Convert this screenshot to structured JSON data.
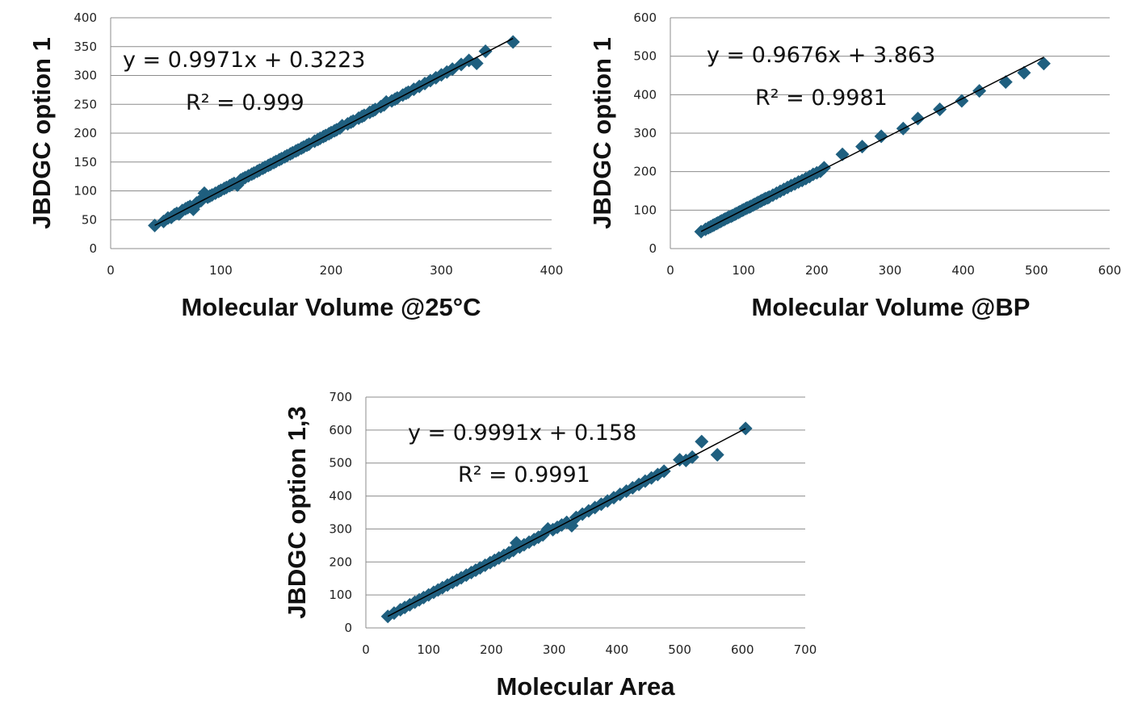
{
  "marker_color": "#1f5f7f",
  "chart_data": [
    {
      "type": "scatter",
      "xlabel": "Molecular Volume @25°C",
      "ylabel": "JBDGC option 1",
      "xlim": [
        0,
        400
      ],
      "ylim": [
        0,
        400
      ],
      "xticks": [
        0,
        100,
        200,
        300,
        400
      ],
      "yticks": [
        0,
        50,
        100,
        150,
        200,
        250,
        300,
        350,
        400
      ],
      "grid": "horizontal",
      "equation": "y = 0.9971x + 0.3223",
      "r2": "R² = 0.999",
      "trend": {
        "slope": 0.9971,
        "intercept": 0.3223
      },
      "series": [
        {
          "x": [
            40,
            48,
            52,
            55,
            58,
            60,
            62,
            65,
            68,
            70,
            72,
            75,
            78,
            80,
            82,
            85,
            88,
            90,
            92,
            95,
            98,
            100,
            103,
            105,
            108,
            110,
            112,
            115,
            118,
            120,
            122,
            125,
            128,
            130,
            133,
            135,
            138,
            140,
            143,
            145,
            148,
            150,
            153,
            155,
            158,
            160,
            163,
            165,
            168,
            170,
            173,
            175,
            178,
            180,
            185,
            188,
            190,
            193,
            195,
            198,
            200,
            203,
            205,
            208,
            210,
            215,
            218,
            220,
            225,
            228,
            230,
            235,
            238,
            240,
            245,
            248,
            250,
            255,
            258,
            260,
            265,
            268,
            270,
            275,
            280,
            285,
            290,
            295,
            300,
            305,
            310,
            318,
            325,
            332,
            340,
            365
          ],
          "y": [
            40,
            47,
            53,
            54,
            59,
            61,
            60,
            66,
            69,
            71,
            73,
            68,
            79,
            81,
            83,
            96,
            89,
            91,
            93,
            96,
            99,
            101,
            104,
            106,
            109,
            111,
            113,
            110,
            119,
            121,
            123,
            126,
            129,
            131,
            134,
            136,
            139,
            141,
            144,
            146,
            149,
            151,
            154,
            156,
            159,
            161,
            164,
            166,
            169,
            171,
            174,
            176,
            179,
            181,
            186,
            189,
            191,
            194,
            196,
            199,
            201,
            204,
            206,
            209,
            213,
            216,
            219,
            221,
            226,
            229,
            231,
            236,
            239,
            241,
            246,
            249,
            254,
            256,
            259,
            261,
            266,
            269,
            271,
            276,
            281,
            286,
            291,
            296,
            301,
            306,
            311,
            319,
            326,
            321,
            342,
            358
          ]
        }
      ]
    },
    {
      "type": "scatter",
      "xlabel": "Molecular Volume @BP",
      "ylabel": "JBDGC option 1",
      "xlim": [
        0,
        600
      ],
      "ylim": [
        0,
        600
      ],
      "xticks": [
        0,
        100,
        200,
        300,
        400,
        500,
        600
      ],
      "yticks": [
        0,
        100,
        200,
        300,
        400,
        500,
        600
      ],
      "grid": "horizontal",
      "equation": "y = 0.9676x + 3.863",
      "r2": "R² = 0.9981",
      "trend": {
        "slope": 0.9676,
        "intercept": 3.863
      },
      "series": [
        {
          "x": [
            42,
            48,
            52,
            55,
            58,
            60,
            63,
            65,
            68,
            70,
            73,
            75,
            78,
            80,
            83,
            85,
            88,
            90,
            93,
            95,
            98,
            100,
            103,
            105,
            108,
            110,
            113,
            115,
            118,
            120,
            123,
            125,
            128,
            130,
            133,
            135,
            140,
            145,
            150,
            155,
            160,
            165,
            170,
            175,
            180,
            185,
            190,
            195,
            200,
            205,
            210,
            235,
            262,
            288,
            318,
            338,
            368,
            398,
            422,
            458,
            483,
            510
          ],
          "y": [
            44,
            50,
            54,
            57,
            60,
            62,
            65,
            67,
            70,
            72,
            75,
            77,
            80,
            82,
            84,
            86,
            89,
            91,
            94,
            96,
            99,
            101,
            104,
            106,
            108,
            110,
            113,
            115,
            118,
            120,
            123,
            125,
            128,
            130,
            132,
            134,
            139,
            144,
            149,
            154,
            159,
            164,
            168,
            173,
            177,
            182,
            187,
            193,
            197,
            201,
            210,
            245,
            265,
            292,
            312,
            338,
            362,
            384,
            410,
            433,
            457,
            481
          ]
        }
      ]
    },
    {
      "type": "scatter",
      "xlabel": "Molecular Area",
      "ylabel": "JBDGC option 1,3",
      "xlim": [
        0,
        700
      ],
      "ylim": [
        0,
        700
      ],
      "xticks": [
        0,
        100,
        200,
        300,
        400,
        500,
        600,
        700
      ],
      "yticks": [
        0,
        100,
        200,
        300,
        400,
        500,
        600,
        700
      ],
      "grid": "horizontal",
      "equation": "y = 0.9991x + 0.158",
      "r2": "R² = 0.9991",
      "trend": {
        "slope": 0.9991,
        "intercept": 0.158
      },
      "series": [
        {
          "x": [
            35,
            45,
            55,
            62,
            70,
            78,
            85,
            92,
            100,
            108,
            115,
            122,
            130,
            138,
            145,
            152,
            160,
            168,
            175,
            182,
            190,
            198,
            205,
            212,
            220,
            228,
            235,
            240,
            245,
            252,
            260,
            268,
            275,
            282,
            290,
            298,
            305,
            312,
            320,
            328,
            335,
            345,
            355,
            365,
            375,
            385,
            395,
            405,
            415,
            425,
            435,
            445,
            455,
            465,
            475,
            500,
            510,
            520,
            535,
            560,
            605
          ],
          "y": [
            35,
            45,
            55,
            62,
            70,
            78,
            85,
            92,
            100,
            108,
            115,
            122,
            130,
            138,
            145,
            152,
            160,
            168,
            175,
            182,
            190,
            198,
            205,
            212,
            220,
            228,
            235,
            258,
            245,
            252,
            260,
            268,
            275,
            282,
            300,
            298,
            305,
            312,
            320,
            310,
            335,
            345,
            355,
            365,
            375,
            385,
            395,
            405,
            415,
            425,
            435,
            445,
            455,
            465,
            475,
            510,
            508,
            518,
            565,
            525,
            605
          ]
        }
      ]
    }
  ]
}
